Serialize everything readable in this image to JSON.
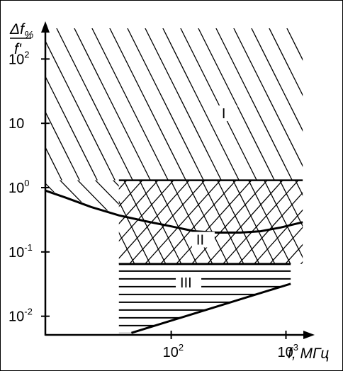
{
  "chart_data": {
    "type": "area",
    "x_scale": "log",
    "y_scale": "log",
    "x_label": {
      "symbol": "f",
      "unit": "МГц"
    },
    "y_label": {
      "numerator": "Δf",
      "subscript": "%",
      "denominator": "f'"
    },
    "x_ticks": [
      {
        "value": 100,
        "base": "10",
        "exp": "2"
      },
      {
        "value": 1000,
        "base": "10",
        "exp": "3"
      }
    ],
    "y_ticks": [
      {
        "value": 100,
        "base": "10",
        "exp": "2"
      },
      {
        "value": 10,
        "base": "10",
        "exp": ""
      },
      {
        "value": 1,
        "base": "10",
        "exp": "0"
      },
      {
        "value": 0.1,
        "base": "10",
        "exp": "-1"
      },
      {
        "value": 0.01,
        "base": "10",
        "exp": "-2"
      }
    ],
    "xlim": [
      8,
      1500
    ],
    "ylim": [
      0.005,
      300
    ],
    "regions": [
      {
        "label": "I",
        "hatch": "diagonal",
        "x_range": [
          8,
          1400
        ],
        "y_range": [
          1.3,
          300
        ],
        "label_at": [
          300,
          12
        ]
      },
      {
        "label": "II",
        "hatch": "cross",
        "x_range": [
          35,
          1400
        ],
        "y_range": [
          0.065,
          1.3
        ],
        "label_at": [
          180,
          0.13
        ]
      },
      {
        "label": "III",
        "hatch": "horizontal",
        "x_range": [
          35,
          1100
        ],
        "y_range": [
          0.005,
          0.065
        ],
        "label_at": [
          130,
          0.028
        ]
      }
    ],
    "boundary_curve": {
      "x": [
        8,
        12,
        20,
        35,
        60,
        100,
        160,
        250,
        400,
        600,
        900,
        1400
      ],
      "y": [
        0.9,
        0.7,
        0.5,
        0.37,
        0.3,
        0.25,
        0.21,
        0.2,
        0.2,
        0.21,
        0.24,
        0.29
      ]
    },
    "diagonal_boundary": {
      "x": [
        45,
        1100
      ],
      "y": [
        0.0055,
        0.032
      ]
    }
  }
}
